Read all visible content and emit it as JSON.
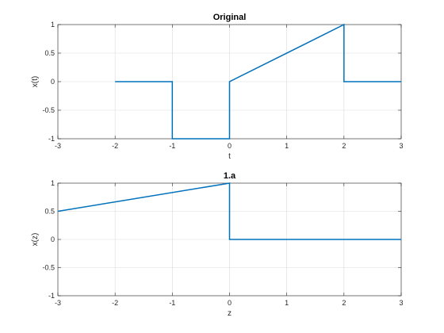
{
  "chart_data": [
    {
      "type": "line",
      "title": "Original",
      "xlabel": "t",
      "ylabel": "x(t)",
      "xlim": [
        -3,
        3
      ],
      "ylim": [
        -1,
        1
      ],
      "xticks": [
        "-3",
        "-2",
        "-1",
        "0",
        "1",
        "2",
        "3"
      ],
      "yticks": [
        "-1",
        "-0.5",
        "0",
        "0.5",
        "1"
      ],
      "grid": true,
      "series": [
        {
          "color": "#0072BD",
          "x": [
            -2,
            -1,
            -1,
            0,
            0,
            2,
            2,
            3
          ],
          "y": [
            0,
            0,
            -1,
            -1,
            0,
            1,
            0,
            0
          ]
        }
      ]
    },
    {
      "type": "line",
      "title": "1.a",
      "xlabel": "z",
      "ylabel": "x(z)",
      "xlim": [
        -3,
        3
      ],
      "ylim": [
        -1,
        1
      ],
      "xticks": [
        "-3",
        "-2",
        "-1",
        "0",
        "1",
        "2",
        "3"
      ],
      "yticks": [
        "-1",
        "-0.5",
        "0",
        "0.5",
        "1"
      ],
      "grid": true,
      "series": [
        {
          "color": "#0072BD",
          "x": [
            -3,
            0,
            0,
            3
          ],
          "y": [
            0.5,
            1,
            0,
            0
          ]
        }
      ]
    }
  ]
}
